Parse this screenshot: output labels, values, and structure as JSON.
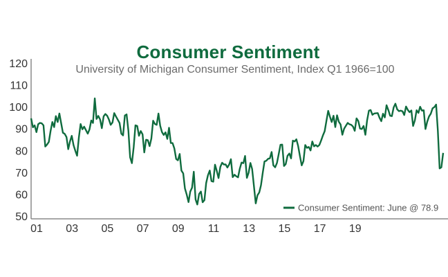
{
  "chart_data": {
    "type": "line",
    "title": "Consumer Sentiment",
    "subtitle": "University of Michigan Consumer Sentiment, Index Q1 1966=100",
    "xlabel": "",
    "ylabel": "",
    "ylim": [
      50,
      120
    ],
    "yticks": [
      50,
      60,
      70,
      80,
      90,
      100,
      110,
      120
    ],
    "xticks": [
      "01",
      "03",
      "05",
      "07",
      "09",
      "11",
      "13",
      "15",
      "17",
      "19"
    ],
    "x_start": "2001-01",
    "x_end": "2020-06",
    "x_frequency": "monthly",
    "grid": false,
    "legend": {
      "position": "bottom-right",
      "entries": [
        "Consumer Sentiment: June @ 78.9"
      ]
    },
    "line_color": "#0f6b3e",
    "series": [
      {
        "name": "Consumer Sentiment",
        "values": [
          94.7,
          90.6,
          91.5,
          88.4,
          92.0,
          92.6,
          92.4,
          91.5,
          81.8,
          82.7,
          83.9,
          88.8,
          93.0,
          90.7,
          95.7,
          93.0,
          96.9,
          92.4,
          88.1,
          87.6,
          86.1,
          80.6,
          84.2,
          86.7,
          82.4,
          79.9,
          77.6,
          86.0,
          92.1,
          89.7,
          90.9,
          89.3,
          87.7,
          89.6,
          93.7,
          92.6,
          103.8,
          94.4,
          95.8,
          94.2,
          90.2,
          95.6,
          96.7,
          95.9,
          94.2,
          91.7,
          92.8,
          97.1,
          95.5,
          94.1,
          92.6,
          87.7,
          86.9,
          96.0,
          96.5,
          89.1,
          76.9,
          74.2,
          81.6,
          91.5,
          91.2,
          86.7,
          88.9,
          87.4,
          79.1,
          84.9,
          84.7,
          82.0,
          85.4,
          93.6,
          92.1,
          91.7,
          96.9,
          91.3,
          88.4,
          87.1,
          88.3,
          85.3,
          90.4,
          83.4,
          83.4,
          80.9,
          76.1,
          75.5,
          78.4,
          70.8,
          69.5,
          62.6,
          59.8,
          56.4,
          61.2,
          63.0,
          70.3,
          57.6,
          55.3,
          60.1,
          61.2,
          56.3,
          57.3,
          65.1,
          68.7,
          70.8,
          66.0,
          65.7,
          73.5,
          70.6,
          67.4,
          72.5,
          74.4,
          73.6,
          73.6,
          72.2,
          73.6,
          76.0,
          67.8,
          68.9,
          68.2,
          67.7,
          71.6,
          74.5,
          74.2,
          77.5,
          67.5,
          69.8,
          74.3,
          71.5,
          63.7,
          55.8,
          59.5,
          60.8,
          64.1,
          69.9,
          75.0,
          75.3,
          76.2,
          76.4,
          79.3,
          73.2,
          72.3,
          74.3,
          78.3,
          82.6,
          82.7,
          72.9,
          73.8,
          77.6,
          78.6,
          76.4,
          84.5,
          84.1,
          85.1,
          82.1,
          77.5,
          73.2,
          75.1,
          82.5,
          81.2,
          81.6,
          80.0,
          84.1,
          81.9,
          82.5,
          81.8,
          82.5,
          84.6,
          86.9,
          88.8,
          93.6,
          98.1,
          95.4,
          93.0,
          95.9,
          90.7,
          96.1,
          93.1,
          91.9,
          87.2,
          90.0,
          91.3,
          92.6,
          92.0,
          91.7,
          91.0,
          89.0,
          94.7,
          93.5,
          90.0,
          89.8,
          91.2,
          87.2,
          93.8,
          98.2,
          98.5,
          96.3,
          96.9,
          97.0,
          97.1,
          95.0,
          93.4,
          96.8,
          95.1,
          100.7,
          98.5,
          95.9,
          95.7,
          99.7,
          101.4,
          98.8,
          98.0,
          98.2,
          97.9,
          96.2,
          100.1,
          98.6,
          97.5,
          98.3,
          91.2,
          93.8,
          98.4,
          97.2,
          100.0,
          98.2,
          98.4,
          89.8,
          93.2,
          95.5,
          96.8,
          99.3,
          99.8,
          101.0,
          89.1,
          71.8,
          72.3,
          78.9
        ]
      }
    ]
  }
}
